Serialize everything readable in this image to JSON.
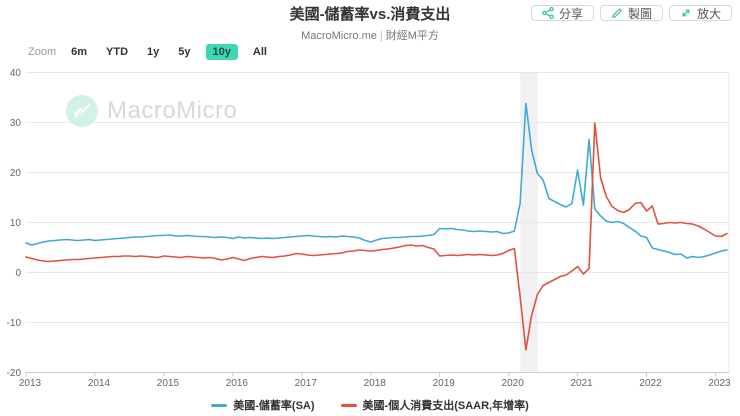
{
  "header": {
    "title": "美國-儲蓄率vs.消費支出",
    "subtitle_site": "MacroMicro.me",
    "subtitle_sep": "|",
    "subtitle_brand": "財經M平方",
    "buttons": [
      {
        "label": "分享",
        "icon": "share-icon"
      },
      {
        "label": "製圖",
        "icon": "pencil-icon"
      },
      {
        "label": "放大",
        "icon": "expand-icon"
      }
    ]
  },
  "range_bar": {
    "zoom_label": "Zoom",
    "options": [
      "6m",
      "YTD",
      "1y",
      "5y",
      "10y",
      "All"
    ],
    "selected": "10y"
  },
  "watermark": {
    "text": "MacroMicro"
  },
  "colors": {
    "savings_line": "#3FA9D8",
    "pce_line": "#E0523E",
    "accent_teal": "#2fbfa0",
    "selected_range_bg": "#3fd6b4",
    "gridline": "#e9e9e9",
    "axis_line": "#cccccc",
    "recession_band": "#ececec"
  },
  "chart_data": {
    "type": "line",
    "title": "美國-儲蓄率vs.消費支出",
    "interval": "monthly",
    "x_start": "2013-01",
    "x_end": "2023-03",
    "x_ticks": [
      2013,
      2014,
      2015,
      2016,
      2017,
      2018,
      2019,
      2020,
      2021,
      2022,
      2023
    ],
    "y_ticks": [
      40,
      30,
      20,
      10,
      0,
      -10,
      -20
    ],
    "ylim": [
      -20,
      40
    ],
    "grid": "horizontal-only",
    "legend_position": "bottom",
    "recession_band": {
      "x_start": 2020.17,
      "x_end": 2020.42
    },
    "series": [
      {
        "name": "美國-儲蓄率(SA)",
        "color": "#3FA9D8",
        "values": [
          5.9,
          5.5,
          5.8,
          6.1,
          6.3,
          6.4,
          6.5,
          6.6,
          6.5,
          6.4,
          6.5,
          6.6,
          6.4,
          6.5,
          6.6,
          6.7,
          6.8,
          6.9,
          7.0,
          7.1,
          7.1,
          7.2,
          7.3,
          7.4,
          7.4,
          7.5,
          7.3,
          7.3,
          7.4,
          7.3,
          7.2,
          7.2,
          7.1,
          7.0,
          7.1,
          7.0,
          6.8,
          7.1,
          6.9,
          7.0,
          6.9,
          6.8,
          6.9,
          6.8,
          6.9,
          7.0,
          7.1,
          7.2,
          7.3,
          7.4,
          7.3,
          7.2,
          7.1,
          7.2,
          7.1,
          7.3,
          7.2,
          7.1,
          6.9,
          6.4,
          6.1,
          6.5,
          6.8,
          6.9,
          7.0,
          7.0,
          7.1,
          7.2,
          7.2,
          7.3,
          7.4,
          7.6,
          8.8,
          8.7,
          8.8,
          8.6,
          8.5,
          8.3,
          8.2,
          8.3,
          8.2,
          8.1,
          8.2,
          7.8,
          7.9,
          8.3,
          13.8,
          33.8,
          24.5,
          19.8,
          18.5,
          14.8,
          14.2,
          13.6,
          13.1,
          13.8,
          20.5,
          13.5,
          26.6,
          12.7,
          11.3,
          10.3,
          10.0,
          10.2,
          9.8,
          9.0,
          8.3,
          7.3,
          7.0,
          4.9,
          4.6,
          4.3,
          4.0,
          3.6,
          3.7,
          2.9,
          3.2,
          3.0,
          3.2,
          3.5,
          3.9,
          4.3,
          4.5
        ]
      },
      {
        "name": "美國-個人消費支出(SAAR,年增率)",
        "color": "#E0523E",
        "values": [
          3.1,
          2.8,
          2.5,
          2.3,
          2.2,
          2.3,
          2.4,
          2.5,
          2.6,
          2.6,
          2.7,
          2.8,
          2.9,
          3.0,
          3.1,
          3.2,
          3.2,
          3.3,
          3.3,
          3.2,
          3.3,
          3.2,
          3.1,
          3.0,
          3.3,
          3.2,
          3.1,
          3.0,
          3.2,
          3.1,
          3.0,
          2.9,
          3.0,
          2.8,
          2.5,
          2.7,
          3.0,
          2.7,
          2.4,
          2.8,
          3.0,
          3.2,
          3.1,
          3.0,
          3.2,
          3.3,
          3.5,
          3.8,
          3.7,
          3.5,
          3.4,
          3.5,
          3.6,
          3.7,
          3.8,
          3.9,
          4.2,
          4.3,
          4.5,
          4.4,
          4.3,
          4.4,
          4.6,
          4.7,
          4.9,
          5.1,
          5.4,
          5.5,
          5.3,
          5.4,
          5.0,
          4.7,
          3.3,
          3.4,
          3.5,
          3.4,
          3.5,
          3.6,
          3.5,
          3.6,
          3.5,
          3.4,
          3.5,
          3.8,
          4.4,
          4.8,
          -4.8,
          -15.5,
          -8.6,
          -4.4,
          -2.6,
          -2.0,
          -1.4,
          -0.8,
          -0.5,
          0.3,
          1.2,
          -0.3,
          0.8,
          29.9,
          19.0,
          15.2,
          13.2,
          12.4,
          12.0,
          12.6,
          13.8,
          14.0,
          12.3,
          13.3,
          9.7,
          9.8,
          10.0,
          9.9,
          10.0,
          9.8,
          9.7,
          9.3,
          8.7,
          8.0,
          7.3,
          7.2,
          7.8
        ]
      }
    ]
  },
  "legend": [
    {
      "label": "美國-儲蓄率(SA)",
      "color": "#3FA9D8"
    },
    {
      "label": "美國-個人消費支出(SAAR,年增率)",
      "color": "#E0523E"
    }
  ]
}
